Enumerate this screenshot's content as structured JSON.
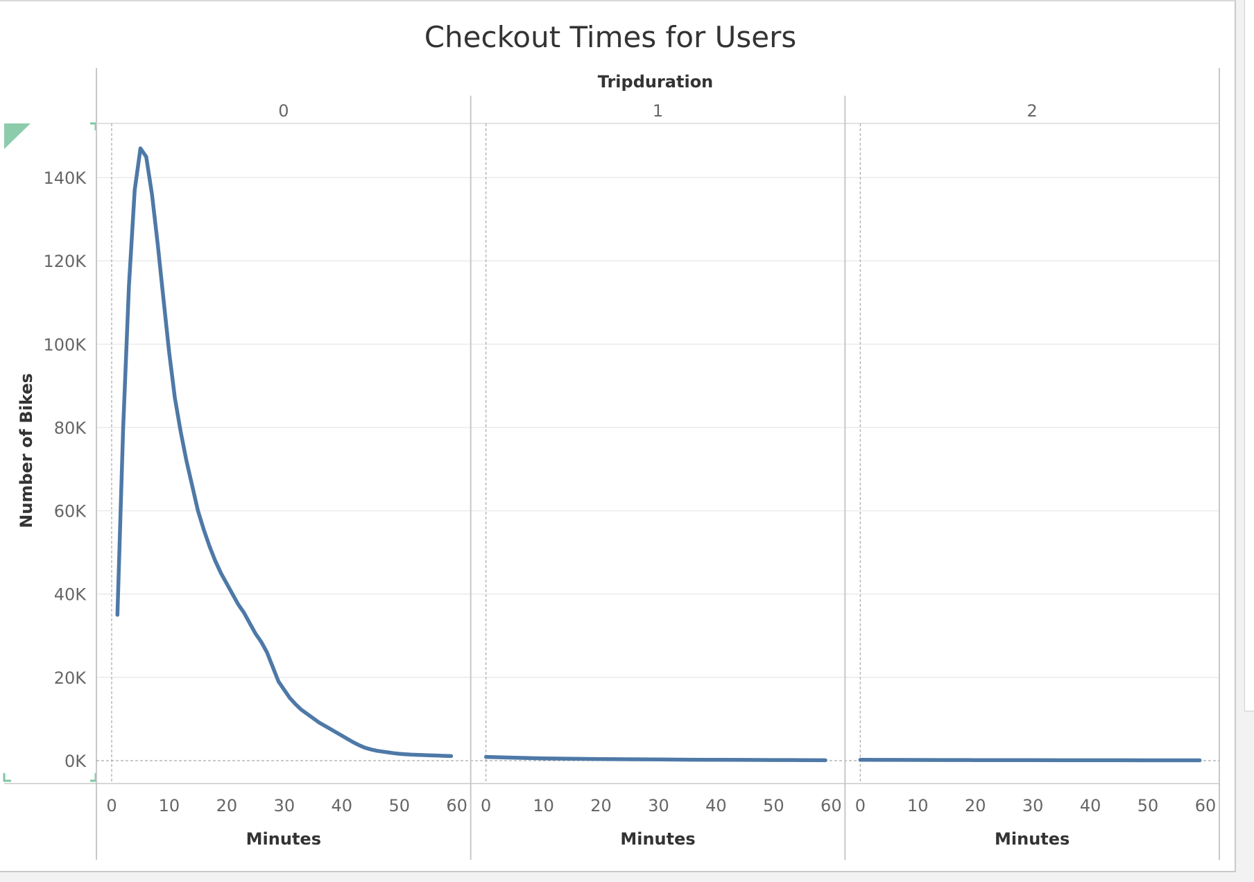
{
  "chart_data": {
    "type": "line",
    "title": "Checkout Times for Users",
    "column_dimension": "Tripduration",
    "panels": [
      {
        "header": "0",
        "x": [
          1,
          2,
          3,
          4,
          5,
          6,
          7,
          8,
          9,
          10,
          11,
          12,
          13,
          14,
          15,
          16,
          17,
          18,
          19,
          20,
          21,
          22,
          23,
          24,
          25,
          26,
          27,
          28,
          29,
          30,
          31,
          32,
          33,
          34,
          35,
          36,
          37,
          38,
          39,
          40,
          41,
          42,
          43,
          44,
          45,
          46,
          47,
          48,
          49,
          50,
          51,
          52,
          53,
          54,
          55,
          56,
          57,
          58,
          59
        ],
        "y": [
          35000,
          80000,
          114000,
          137000,
          147000,
          145000,
          136000,
          124000,
          111000,
          98000,
          87000,
          79000,
          72000,
          66000,
          60000,
          55500,
          51500,
          48000,
          45000,
          42500,
          40000,
          37500,
          35500,
          33000,
          30500,
          28500,
          26000,
          22500,
          19000,
          17000,
          15000,
          13500,
          12200,
          11200,
          10200,
          9200,
          8400,
          7600,
          6800,
          6000,
          5200,
          4400,
          3700,
          3100,
          2700,
          2400,
          2200,
          2000,
          1800,
          1650,
          1550,
          1450,
          1400,
          1350,
          1300,
          1250,
          1200,
          1150,
          1100
        ]
      },
      {
        "header": "1",
        "x": [
          0,
          5,
          10,
          15,
          20,
          25,
          30,
          35,
          40,
          45,
          50,
          55,
          59
        ],
        "y": [
          900,
          700,
          550,
          450,
          380,
          320,
          270,
          230,
          200,
          170,
          150,
          120,
          100
        ]
      },
      {
        "header": "2",
        "x": [
          0,
          5,
          10,
          15,
          20,
          25,
          30,
          35,
          40,
          45,
          50,
          55,
          59
        ],
        "y": [
          200,
          180,
          160,
          140,
          130,
          120,
          110,
          100,
          95,
          90,
          85,
          80,
          75
        ]
      }
    ],
    "xlabel": "Minutes",
    "ylabel": "Number of Bikes",
    "x_ticks": [
      0,
      10,
      20,
      30,
      40,
      50,
      60
    ],
    "y_ticks": [
      0,
      20000,
      40000,
      60000,
      80000,
      100000,
      120000,
      140000
    ],
    "y_tick_labels": [
      "0K",
      "20K",
      "40K",
      "60K",
      "80K",
      "100K",
      "120K",
      "140K"
    ],
    "xlim": [
      0,
      60
    ],
    "ylim": [
      -5500,
      153000
    ],
    "grid": true,
    "line_color": "#4e79a7",
    "accent_color": "#7fc6a4"
  }
}
